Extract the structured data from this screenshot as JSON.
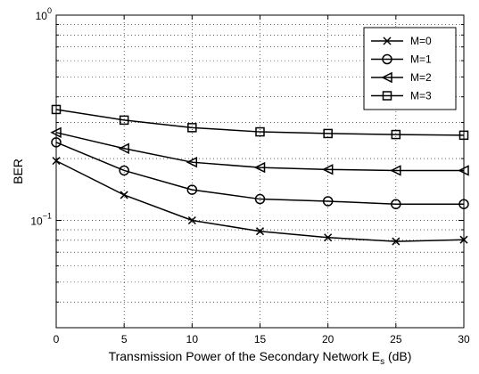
{
  "chart_data": {
    "type": "line",
    "title": "",
    "xlabel": "Transmission Power of the Secondary Network E",
    "xlabel_subscript": "s",
    "xlabel_suffix": " (dB)",
    "ylabel": "BER",
    "xlim": [
      0,
      30
    ],
    "ylim": [
      0.03,
      1
    ],
    "yscale": "log",
    "grid": true,
    "legend_position": "top-right",
    "x": [
      0,
      5,
      10,
      15,
      20,
      25,
      30
    ],
    "x_tick_labels": [
      "0",
      "5",
      "10",
      "15",
      "20",
      "25",
      "30"
    ],
    "y_ticks": [
      {
        "base": "10",
        "exp": "0",
        "value": 1
      },
      {
        "base": "10",
        "exp": "−1",
        "value": 0.1
      }
    ],
    "series": [
      {
        "name": "M=0",
        "marker": "x",
        "values": [
          0.195,
          0.133,
          0.1,
          0.0885,
          0.0825,
          0.079,
          0.0805
        ]
      },
      {
        "name": "M=1",
        "marker": "circle",
        "values": [
          0.24,
          0.175,
          0.141,
          0.127,
          0.124,
          0.12,
          0.12
        ]
      },
      {
        "name": "M=2",
        "marker": "triangle-left",
        "values": [
          0.268,
          0.224,
          0.192,
          0.181,
          0.177,
          0.175,
          0.175
        ]
      },
      {
        "name": "M=3",
        "marker": "square",
        "values": [
          0.347,
          0.308,
          0.283,
          0.27,
          0.265,
          0.262,
          0.26
        ]
      }
    ]
  }
}
